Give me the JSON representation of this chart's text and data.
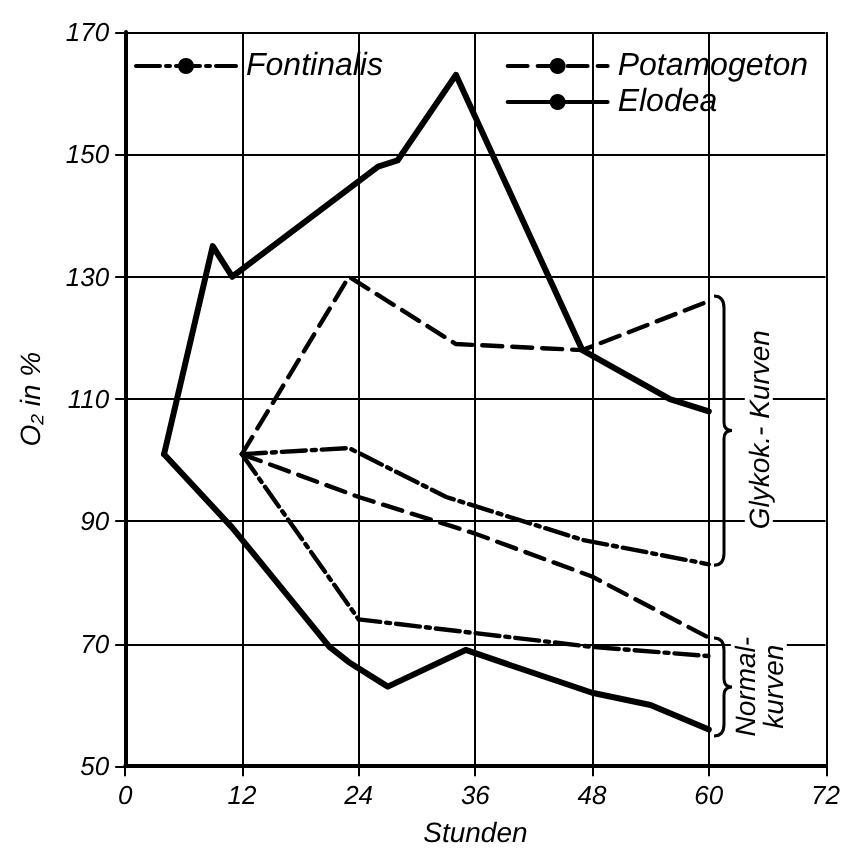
{
  "chart_data": {
    "type": "line",
    "xlabel": "Stunden",
    "ylabel": "O₂ in %",
    "xlim": [
      0,
      72
    ],
    "xticks": [
      0,
      12,
      24,
      36,
      48,
      60,
      72
    ],
    "ylim": [
      50,
      170
    ],
    "yticks": [
      50,
      70,
      90,
      110,
      130,
      150,
      170
    ],
    "grid": true,
    "legend": "top",
    "marker": "none",
    "annotations": [
      "Glykok.- Kurven",
      "Normal- kurven"
    ],
    "series": [
      {
        "name": "Fontinalis",
        "color": "#000000",
        "line_style": "dashdot",
        "x": [
          12,
          23,
          33,
          47,
          60
        ],
        "values": [
          101,
          102,
          94,
          87,
          83
        ]
      },
      {
        "name": "Potamogeton",
        "color": "#000000",
        "line_style": "dashed",
        "x": [
          12,
          23,
          34,
          47,
          60
        ],
        "values": [
          101,
          130,
          119,
          118,
          126
        ]
      },
      {
        "name": "Elodea",
        "color": "#000000",
        "line_style": "solid",
        "x": [
          4,
          9,
          11,
          26,
          28,
          34,
          47,
          56,
          60
        ],
        "values": [
          101,
          135,
          130,
          148,
          149,
          163,
          118,
          110,
          108
        ]
      },
      {
        "color": "#000000",
        "line_style": "dashdot",
        "x": [
          12,
          24,
          48,
          60
        ],
        "values": [
          101,
          74,
          69.5,
          68
        ]
      },
      {
        "color": "#000000",
        "line_style": "dashed",
        "x": [
          12,
          24,
          36,
          48,
          60
        ],
        "values": [
          101,
          94,
          88,
          81,
          71
        ]
      },
      {
        "color": "#000000",
        "line_style": "solid",
        "x": [
          4,
          11,
          21,
          23,
          27,
          35,
          48,
          54,
          60
        ],
        "values": [
          101,
          89,
          69.5,
          67,
          63,
          69,
          62,
          60,
          56
        ]
      }
    ]
  }
}
